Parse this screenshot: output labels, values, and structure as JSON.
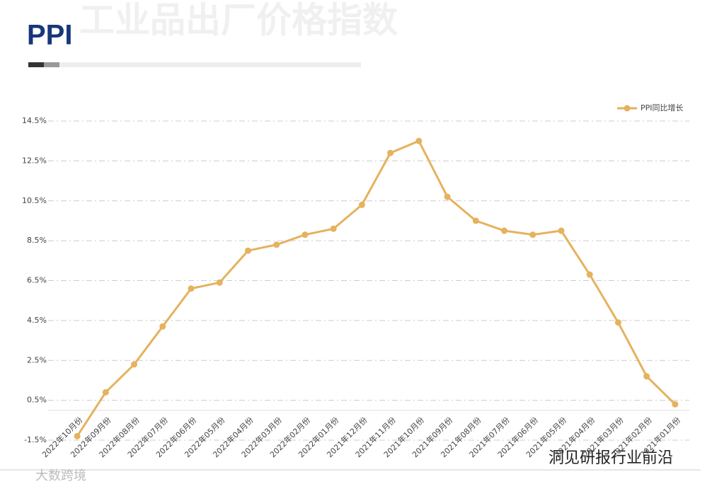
{
  "chart_data": {
    "type": "line",
    "title": "PPI",
    "subtitle": "工业品出厂价格指数",
    "categories": [
      "2022年10月份",
      "2022年09月份",
      "2022年08月份",
      "2022年07月份",
      "2022年06月份",
      "2022年05月份",
      "2022年04月份",
      "2022年03月份",
      "2022年02月份",
      "2022年01月份",
      "2021年12月份",
      "2021年11月份",
      "2021年10月份",
      "2021年09月份",
      "2021年08月份",
      "2021年07月份",
      "2021年06月份",
      "2021年05月份",
      "2021年04月份",
      "2021年03月份",
      "2021年02月份",
      "2021年01月份"
    ],
    "series": [
      {
        "name": "PPI同比增长",
        "color": "#e5b25d",
        "values": [
          -1.3,
          0.9,
          2.3,
          4.2,
          6.1,
          6.4,
          8.0,
          8.3,
          8.8,
          9.1,
          10.3,
          12.9,
          13.5,
          10.7,
          9.5,
          9.0,
          8.8,
          9.0,
          6.8,
          4.4,
          1.7,
          0.3
        ]
      }
    ],
    "ylim": [
      -1.5,
      14.5
    ],
    "yticks": [
      {
        "value": -1.5,
        "label": "-1.5%"
      },
      {
        "value": 0.5,
        "label": "0.5%"
      },
      {
        "value": 2.5,
        "label": "2.5%"
      },
      {
        "value": 4.5,
        "label": "4.5%"
      },
      {
        "value": 6.5,
        "label": "6.5%"
      },
      {
        "value": 8.5,
        "label": "8.5%"
      },
      {
        "value": 10.5,
        "label": "10.5%"
      },
      {
        "value": 12.5,
        "label": "12.5%"
      },
      {
        "value": 14.5,
        "label": "14.5%"
      }
    ],
    "grid": true,
    "legend": "top-right"
  },
  "watermarks": [
    "洞见研报行业前沿",
    "大数跨境"
  ]
}
